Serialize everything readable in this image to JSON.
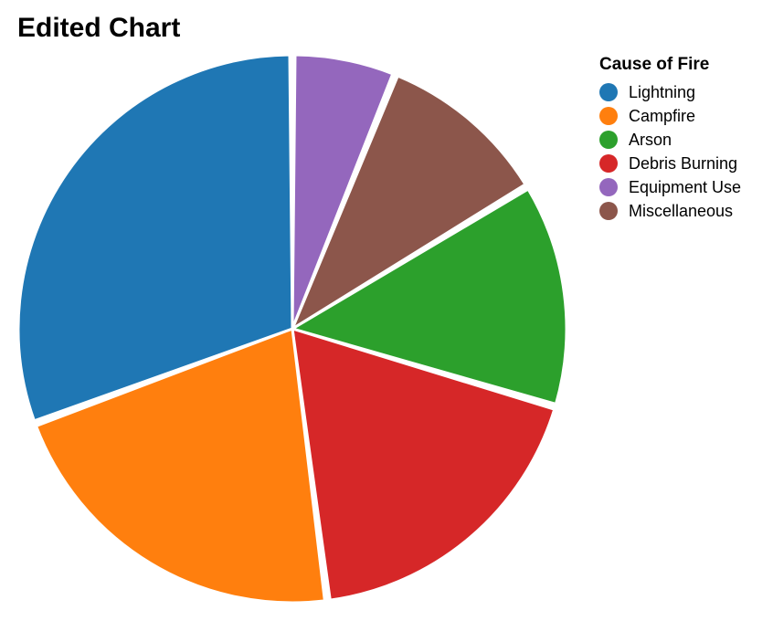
{
  "chart_data": {
    "type": "pie",
    "title": "Edited Chart",
    "legend_title": "Cause of Fire",
    "legend_position": "right",
    "categories": [
      "Lightning",
      "Campfire",
      "Arson",
      "Debris Burning",
      "Equipment Use",
      "Miscellaneous"
    ],
    "colors": [
      "#1f77b4",
      "#ff7f0e",
      "#2ca02c",
      "#d62728",
      "#9467bd",
      "#8c564b"
    ],
    "values": [
      30,
      21,
      13,
      18,
      6,
      10
    ]
  }
}
